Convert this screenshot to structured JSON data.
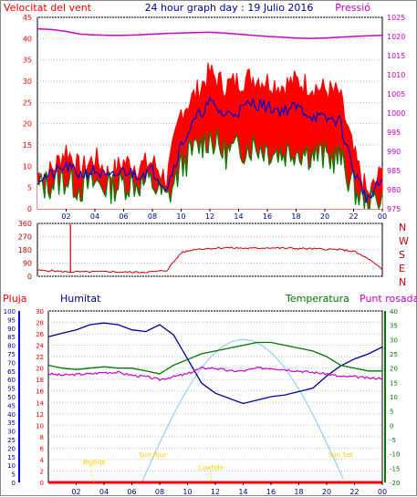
{
  "header": {
    "left_title": "Velocitat del vent",
    "center_title": "24 hour graph day : 19 Julio 2016",
    "right_title": "Pressió"
  },
  "bottom_header": {
    "pluja": "Pluja",
    "humitat": "Humitat",
    "temperatura": "Temperatura",
    "punt_rosada": "Punt rosada"
  },
  "colors": {
    "wind_red": "#ff0000",
    "wind_blue": "#0000cc",
    "wind_green": "#008000",
    "pressure": "#cc00cc",
    "direction": "#cc0000",
    "humidity": "#000099",
    "temperature": "#007700",
    "dewpoint": "#cc00cc",
    "sun": "#99ccff",
    "rain": "#ff0000",
    "astro_label": "#ffcc00"
  },
  "x_ticks": [
    "02",
    "04",
    "06",
    "08",
    "10",
    "12",
    "14",
    "16",
    "18",
    "20",
    "22",
    "00"
  ],
  "astro_labels": {
    "bigtide": "Bigtide",
    "sunrise": "Sun Rise",
    "lowtide": "Lowtide",
    "sunset": "Sun Set"
  },
  "chart_data": [
    {
      "type": "line",
      "title": "Velocitat del vent",
      "ylim": [
        0,
        45
      ],
      "y_ticks": [
        "0",
        "5",
        "10",
        "15",
        "20",
        "25",
        "30",
        "35",
        "40",
        "45"
      ],
      "y2_label": "Pressió",
      "y2lim": [
        975,
        1025
      ],
      "y2_ticks": [
        "975",
        "980",
        "985",
        "990",
        "995",
        "1000",
        "1005",
        "1010",
        "1015",
        "1020",
        "1025"
      ],
      "x": [
        0,
        1,
        2,
        3,
        4,
        5,
        6,
        7,
        8,
        9,
        10,
        11,
        12,
        13,
        14,
        15,
        16,
        17,
        18,
        19,
        20,
        21,
        22,
        23,
        24
      ],
      "series": [
        {
          "key": "gust",
          "values": [
            8,
            9,
            14,
            9,
            12,
            8,
            11,
            10,
            11,
            7,
            23,
            27,
            32,
            29,
            30,
            31,
            30,
            29,
            30,
            29,
            28,
            27,
            13,
            3,
            9
          ]
        },
        {
          "key": "avg",
          "values": [
            7,
            8,
            10,
            8,
            9,
            7,
            9,
            8,
            9,
            5,
            15,
            21,
            25,
            22,
            23,
            25,
            24,
            23,
            24,
            22,
            21,
            21,
            9,
            2,
            7
          ]
        },
        {
          "key": "low",
          "values": [
            5,
            6,
            7,
            5,
            6,
            5,
            6,
            6,
            6,
            2,
            10,
            14,
            17,
            13,
            14,
            15,
            14,
            13,
            14,
            13,
            12,
            12,
            5,
            0,
            4
          ]
        },
        {
          "key": "pressure",
          "values": [
            1022,
            1021.8,
            1021.3,
            1020.6,
            1020.4,
            1020.3,
            1020.3,
            1020.4,
            1020.6,
            1020.8,
            1020.9,
            1021.0,
            1021.1,
            1020.9,
            1020.6,
            1020.3,
            1020.0,
            1019.8,
            1019.6,
            1019.5,
            1019.6,
            1019.8,
            1020.0,
            1020.2,
            1020.3
          ]
        }
      ]
    },
    {
      "type": "line",
      "title": "",
      "ylim": [
        0,
        360
      ],
      "y_ticks": [
        "0",
        "90",
        "180",
        "270",
        "360"
      ],
      "right_labels": [
        "N",
        "W",
        "S",
        "E",
        "N"
      ],
      "x": [
        0,
        1,
        2,
        3,
        4,
        5,
        6,
        7,
        8,
        9,
        10,
        11,
        12,
        13,
        14,
        15,
        16,
        17,
        18,
        19,
        20,
        21,
        22,
        23,
        24
      ],
      "series": [
        {
          "key": "direction",
          "values": [
            40,
            38,
            30,
            30,
            30,
            32,
            28,
            28,
            30,
            40,
            160,
            185,
            190,
            195,
            192,
            190,
            195,
            192,
            190,
            188,
            185,
            182,
            170,
            120,
            45
          ]
        }
      ],
      "spike": {
        "x": 2.3,
        "value": 355
      }
    },
    {
      "type": "line",
      "title": "",
      "left_axis_label": "Pluja",
      "left_ylim": [
        0,
        100
      ],
      "left_ticks": [
        "0",
        "5",
        "10",
        "15",
        "20",
        "25",
        "30",
        "35",
        "40",
        "45",
        "50",
        "55",
        "60",
        "65",
        "70",
        "75",
        "80",
        "85",
        "90",
        "95",
        "100"
      ],
      "mid_ylim": [
        0,
        30
      ],
      "mid_ticks": [
        "0",
        "2",
        "4",
        "6",
        "8",
        "10",
        "12",
        "14",
        "16",
        "18",
        "20",
        "22",
        "24",
        "26",
        "28",
        "30"
      ],
      "right_ylim": [
        -20,
        40
      ],
      "right_ticks": [
        "-20",
        "-15",
        "-10",
        "-5",
        "0",
        "5",
        "10",
        "15",
        "20",
        "25",
        "30",
        "35",
        "40"
      ],
      "x": [
        0,
        1,
        2,
        3,
        4,
        5,
        6,
        7,
        8,
        9,
        10,
        11,
        12,
        13,
        14,
        15,
        16,
        17,
        18,
        19,
        20,
        21,
        22,
        23,
        24
      ],
      "series": [
        {
          "key": "humidity",
          "values": [
            85,
            87,
            89,
            92,
            93,
            92,
            89,
            88,
            92,
            86,
            72,
            58,
            52,
            49,
            46,
            48,
            50,
            51,
            53,
            55,
            62,
            68,
            72,
            75,
            79
          ]
        },
        {
          "key": "temperature",
          "values": [
            21,
            20,
            19.5,
            20,
            20.5,
            20,
            20,
            19,
            18,
            21,
            23,
            25,
            26,
            27,
            28,
            29,
            29,
            28,
            27,
            26,
            24,
            21,
            20,
            19,
            19
          ]
        },
        {
          "key": "dewpoint",
          "values": [
            18,
            17.5,
            17.8,
            18,
            18.5,
            18.5,
            17.5,
            17,
            16,
            17,
            18,
            20,
            20,
            19,
            19,
            20,
            20,
            19.5,
            19,
            18.5,
            18,
            17,
            17,
            16.5,
            16.5
          ]
        },
        {
          "key": "rain",
          "values": [
            0,
            0,
            0,
            0,
            0,
            0,
            0,
            0,
            0,
            0,
            0,
            0,
            0,
            0,
            0,
            0,
            0,
            0,
            0,
            0,
            0,
            0,
            0,
            0,
            0
          ]
        }
      ],
      "sun": {
        "rise": 6.7,
        "set": 21.3,
        "peak_temp": 30
      }
    }
  ]
}
